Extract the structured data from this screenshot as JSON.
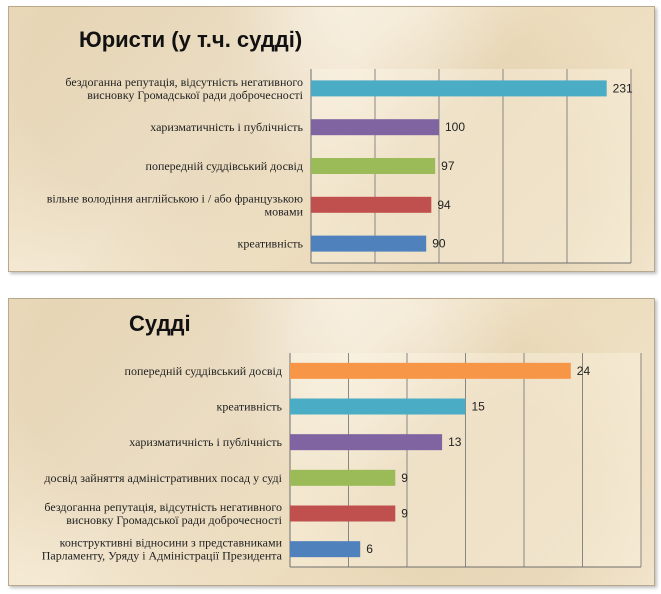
{
  "chart_data": [
    {
      "type": "bar",
      "orientation": "horizontal",
      "title": "Юристи (у т.ч. судді)",
      "categories": [
        [
          "бездоганна репутація, відсутність негативного",
          "висновку Громадської ради доброчесності"
        ],
        [
          "харизматичність і публічність"
        ],
        [
          "попередній суддівський досвід"
        ],
        [
          "вільне володіння англійською і / або французькою",
          "мовами"
        ],
        [
          "креативність"
        ]
      ],
      "values": [
        231,
        100,
        97,
        94,
        90
      ],
      "colors": [
        "#4bacc6",
        "#8064a2",
        "#9bbb59",
        "#c0504d",
        "#4f81bd"
      ],
      "xlim": [
        0,
        250
      ],
      "grid": true
    },
    {
      "type": "bar",
      "orientation": "horizontal",
      "title": "Судді",
      "categories": [
        [
          "попередній суддівський досвід"
        ],
        [
          "креативність"
        ],
        [
          "харизматичність і публічність"
        ],
        [
          "досвід зайняття адміністративних посад у суді"
        ],
        [
          "бездоганна репутація, відсутність негативного",
          "висновку Громадської ради доброчесності"
        ],
        [
          "конструктивні відносини з представниками",
          "Парламенту, Уряду і Адміністрації Президента"
        ]
      ],
      "values": [
        24,
        15,
        13,
        9,
        9,
        6
      ],
      "colors": [
        "#f79646",
        "#4bacc6",
        "#8064a2",
        "#9bbb59",
        "#c0504d",
        "#4f81bd"
      ],
      "xlim": [
        0,
        30
      ],
      "grid": true
    }
  ]
}
